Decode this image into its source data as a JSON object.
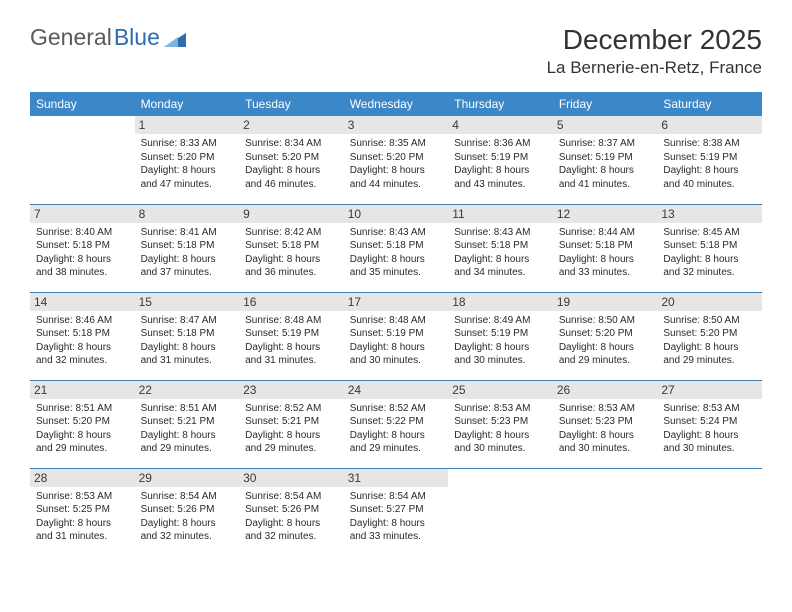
{
  "logo": {
    "part1": "General",
    "part2": "Blue"
  },
  "title": "December 2025",
  "location": "La Bernerie-en-Retz, France",
  "colors": {
    "header_bg": "#3b87c8",
    "header_text": "#ffffff",
    "daynum_bg": "#e6e6e6",
    "rule": "#3b7fb5",
    "logo_gray": "#5a5a5a",
    "logo_blue": "#2a6db0"
  },
  "day_headers": [
    "Sunday",
    "Monday",
    "Tuesday",
    "Wednesday",
    "Thursday",
    "Friday",
    "Saturday"
  ],
  "weeks": [
    [
      {
        "n": "",
        "sr": "",
        "ss": "",
        "dl": ""
      },
      {
        "n": "1",
        "sr": "8:33 AM",
        "ss": "5:20 PM",
        "dl": "8 hours and 47 minutes."
      },
      {
        "n": "2",
        "sr": "8:34 AM",
        "ss": "5:20 PM",
        "dl": "8 hours and 46 minutes."
      },
      {
        "n": "3",
        "sr": "8:35 AM",
        "ss": "5:20 PM",
        "dl": "8 hours and 44 minutes."
      },
      {
        "n": "4",
        "sr": "8:36 AM",
        "ss": "5:19 PM",
        "dl": "8 hours and 43 minutes."
      },
      {
        "n": "5",
        "sr": "8:37 AM",
        "ss": "5:19 PM",
        "dl": "8 hours and 41 minutes."
      },
      {
        "n": "6",
        "sr": "8:38 AM",
        "ss": "5:19 PM",
        "dl": "8 hours and 40 minutes."
      }
    ],
    [
      {
        "n": "7",
        "sr": "8:40 AM",
        "ss": "5:18 PM",
        "dl": "8 hours and 38 minutes."
      },
      {
        "n": "8",
        "sr": "8:41 AM",
        "ss": "5:18 PM",
        "dl": "8 hours and 37 minutes."
      },
      {
        "n": "9",
        "sr": "8:42 AM",
        "ss": "5:18 PM",
        "dl": "8 hours and 36 minutes."
      },
      {
        "n": "10",
        "sr": "8:43 AM",
        "ss": "5:18 PM",
        "dl": "8 hours and 35 minutes."
      },
      {
        "n": "11",
        "sr": "8:43 AM",
        "ss": "5:18 PM",
        "dl": "8 hours and 34 minutes."
      },
      {
        "n": "12",
        "sr": "8:44 AM",
        "ss": "5:18 PM",
        "dl": "8 hours and 33 minutes."
      },
      {
        "n": "13",
        "sr": "8:45 AM",
        "ss": "5:18 PM",
        "dl": "8 hours and 32 minutes."
      }
    ],
    [
      {
        "n": "14",
        "sr": "8:46 AM",
        "ss": "5:18 PM",
        "dl": "8 hours and 32 minutes."
      },
      {
        "n": "15",
        "sr": "8:47 AM",
        "ss": "5:18 PM",
        "dl": "8 hours and 31 minutes."
      },
      {
        "n": "16",
        "sr": "8:48 AM",
        "ss": "5:19 PM",
        "dl": "8 hours and 31 minutes."
      },
      {
        "n": "17",
        "sr": "8:48 AM",
        "ss": "5:19 PM",
        "dl": "8 hours and 30 minutes."
      },
      {
        "n": "18",
        "sr": "8:49 AM",
        "ss": "5:19 PM",
        "dl": "8 hours and 30 minutes."
      },
      {
        "n": "19",
        "sr": "8:50 AM",
        "ss": "5:20 PM",
        "dl": "8 hours and 29 minutes."
      },
      {
        "n": "20",
        "sr": "8:50 AM",
        "ss": "5:20 PM",
        "dl": "8 hours and 29 minutes."
      }
    ],
    [
      {
        "n": "21",
        "sr": "8:51 AM",
        "ss": "5:20 PM",
        "dl": "8 hours and 29 minutes."
      },
      {
        "n": "22",
        "sr": "8:51 AM",
        "ss": "5:21 PM",
        "dl": "8 hours and 29 minutes."
      },
      {
        "n": "23",
        "sr": "8:52 AM",
        "ss": "5:21 PM",
        "dl": "8 hours and 29 minutes."
      },
      {
        "n": "24",
        "sr": "8:52 AM",
        "ss": "5:22 PM",
        "dl": "8 hours and 29 minutes."
      },
      {
        "n": "25",
        "sr": "8:53 AM",
        "ss": "5:23 PM",
        "dl": "8 hours and 30 minutes."
      },
      {
        "n": "26",
        "sr": "8:53 AM",
        "ss": "5:23 PM",
        "dl": "8 hours and 30 minutes."
      },
      {
        "n": "27",
        "sr": "8:53 AM",
        "ss": "5:24 PM",
        "dl": "8 hours and 30 minutes."
      }
    ],
    [
      {
        "n": "28",
        "sr": "8:53 AM",
        "ss": "5:25 PM",
        "dl": "8 hours and 31 minutes."
      },
      {
        "n": "29",
        "sr": "8:54 AM",
        "ss": "5:26 PM",
        "dl": "8 hours and 32 minutes."
      },
      {
        "n": "30",
        "sr": "8:54 AM",
        "ss": "5:26 PM",
        "dl": "8 hours and 32 minutes."
      },
      {
        "n": "31",
        "sr": "8:54 AM",
        "ss": "5:27 PM",
        "dl": "8 hours and 33 minutes."
      },
      {
        "n": "",
        "sr": "",
        "ss": "",
        "dl": ""
      },
      {
        "n": "",
        "sr": "",
        "ss": "",
        "dl": ""
      },
      {
        "n": "",
        "sr": "",
        "ss": "",
        "dl": ""
      }
    ]
  ],
  "labels": {
    "sunrise": "Sunrise:",
    "sunset": "Sunset:",
    "daylight": "Daylight:"
  }
}
